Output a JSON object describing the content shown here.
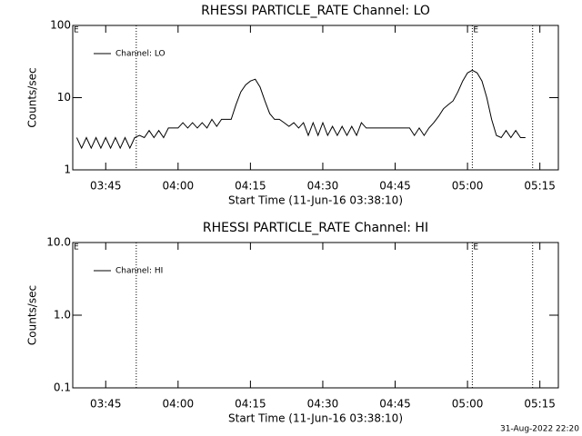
{
  "chart_data": [
    {
      "type": "line",
      "title": "RHESSI PARTICLE_RATE Channel: LO",
      "xlabel": "Start Time (11-Jun-16 03:38:10)",
      "ylabel": "Counts/sec",
      "log_y": true,
      "xlim": [
        "03:38:10",
        "05:18:50"
      ],
      "xticks": [
        "03:45",
        "04:00",
        "04:15",
        "04:30",
        "04:45",
        "05:00",
        "05:15"
      ],
      "ylim": [
        1,
        100
      ],
      "yticks": [
        1,
        10,
        100
      ],
      "vlines": [
        "03:51:20",
        "05:01:00",
        "05:13:30"
      ],
      "annotations": [
        {
          "text": "E",
          "x": "03:38:10"
        },
        {
          "text": "E",
          "x": "05:01:00"
        }
      ],
      "x": [
        "03:39",
        "03:40",
        "03:41",
        "03:42",
        "03:43",
        "03:44",
        "03:45",
        "03:46",
        "03:47",
        "03:48",
        "03:49",
        "03:50",
        "03:51",
        "03:52",
        "03:53",
        "03:54",
        "03:55",
        "03:56",
        "03:57",
        "03:58",
        "03:59",
        "04:00",
        "04:01",
        "04:02",
        "04:03",
        "04:04",
        "04:05",
        "04:06",
        "04:07",
        "04:08",
        "04:09",
        "04:10",
        "04:11",
        "04:12",
        "04:13",
        "04:14",
        "04:15",
        "04:16",
        "04:17",
        "04:18",
        "04:19",
        "04:20",
        "04:21",
        "04:22",
        "04:23",
        "04:24",
        "04:25",
        "04:26",
        "04:27",
        "04:28",
        "04:29",
        "04:30",
        "04:31",
        "04:32",
        "04:33",
        "04:34",
        "04:35",
        "04:36",
        "04:37",
        "04:38",
        "04:39",
        "04:40",
        "04:41",
        "04:42",
        "04:43",
        "04:44",
        "04:45",
        "04:46",
        "04:47",
        "04:48",
        "04:49",
        "04:50",
        "04:51",
        "04:52",
        "04:53",
        "04:54",
        "04:55",
        "04:56",
        "04:57",
        "04:58",
        "04:59",
        "05:00",
        "05:01",
        "05:02",
        "05:03",
        "05:04",
        "05:05",
        "05:06",
        "05:07",
        "05:08",
        "05:09",
        "05:10",
        "05:11",
        "05:12"
      ],
      "series": [
        {
          "name": "Channel: LO",
          "color": "#000000",
          "values": [
            2.8,
            2.0,
            2.8,
            2.0,
            2.8,
            2.0,
            2.8,
            2.0,
            2.8,
            2.0,
            2.8,
            2.0,
            2.8,
            3.0,
            2.8,
            3.5,
            2.8,
            3.5,
            2.8,
            3.8,
            3.8,
            3.8,
            4.5,
            3.8,
            4.5,
            3.8,
            4.5,
            3.8,
            5,
            4,
            5,
            5,
            5,
            8,
            12,
            15,
            17,
            18,
            14,
            9,
            6,
            5,
            5,
            4.5,
            4.0,
            4.5,
            3.8,
            4.5,
            3,
            4.5,
            3.0,
            4.5,
            3.0,
            4.0,
            3.0,
            4.0,
            3.0,
            4.0,
            3.0,
            4.5,
            3.8,
            3.8,
            3.8,
            3.8,
            3.8,
            3.8,
            3.8,
            3.8,
            3.8,
            3.8,
            3.0,
            3.8,
            3.0,
            3.8,
            4.5,
            5.5,
            7,
            8,
            9,
            12,
            17,
            22,
            24,
            22,
            17,
            10,
            5,
            3,
            2.8,
            3.5,
            2.8,
            3.5,
            2.8,
            2.8
          ]
        }
      ]
    },
    {
      "type": "line",
      "title": "RHESSI PARTICLE_RATE Channel: HI",
      "xlabel": "Start Time (11-Jun-16 03:38:10)",
      "ylabel": "Counts/sec",
      "log_y": true,
      "xlim": [
        "03:38:10",
        "05:18:50"
      ],
      "xticks": [
        "03:45",
        "04:00",
        "04:15",
        "04:30",
        "04:45",
        "05:00",
        "05:15"
      ],
      "ylim": [
        0.1,
        10
      ],
      "yticks": [
        0.1,
        {
          "value": 1,
          "label": "1.0"
        },
        {
          "value": 10,
          "label": "10.0"
        }
      ],
      "vlines": [
        "03:51:20",
        "05:01:00",
        "05:13:30"
      ],
      "annotations": [
        {
          "text": "E",
          "x": "03:38:10"
        },
        {
          "text": "E",
          "x": "05:01:00"
        }
      ],
      "x": [],
      "series": [
        {
          "name": "Channel: HI",
          "color": "#000000",
          "values": []
        }
      ]
    }
  ],
  "footer": "31-Aug-2022 22:20"
}
